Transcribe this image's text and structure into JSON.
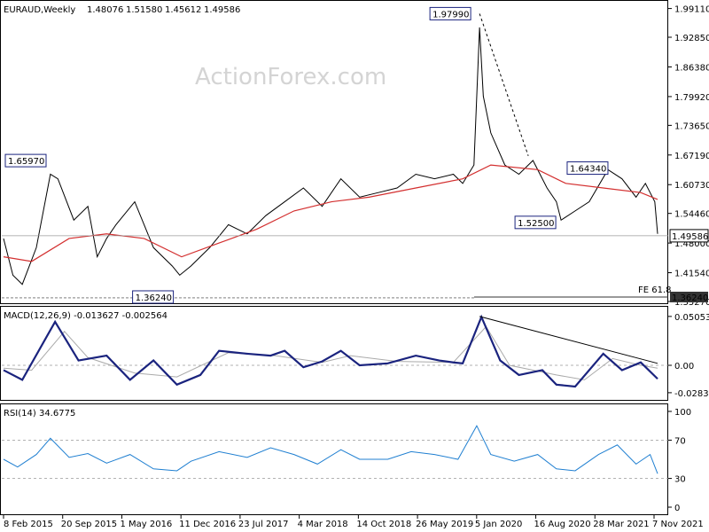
{
  "chart_data": {
    "type": "line",
    "title": "EURAUD,Weekly",
    "ohlc": {
      "open": "1.48076",
      "high": "1.51580",
      "low": "1.45612",
      "close": "1.49586"
    },
    "watermark": "ActionForex.com",
    "x_tick_labels": [
      "8 Feb 2015",
      "20 Sep 2015",
      "1 May 2016",
      "11 Dec 2016",
      "23 Jul 2017",
      "4 Mar 2018",
      "14 Oct 2018",
      "26 May 2019",
      "5 Jan 2020",
      "16 Aug 2020",
      "28 Mar 2021",
      "7 Nov 2021"
    ],
    "colors": {
      "price": "#000000",
      "sma": "#d32f2f",
      "macd": "#1a237e",
      "signal": "#aaaaaa",
      "rsi": "#1f7fd1",
      "grid": "#999999"
    },
    "price_panel": {
      "ylim": [
        1.3527,
        2.0
      ],
      "y_ticks": [
        1.9911,
        1.9285,
        1.8638,
        1.7992,
        1.7365,
        1.6719,
        1.6073,
        1.5446,
        1.48,
        1.4154,
        1.3527
      ],
      "y_tick_labels": [
        "1.99110",
        "1.92850",
        "1.86380",
        "1.79920",
        "1.73650",
        "1.67190",
        "1.60730",
        "1.54460",
        "1.48000",
        "1.41540",
        "1.35270"
      ],
      "current_price": 1.49586,
      "current_price_label": "1.49586",
      "fe_level": 1.3624,
      "fe_level_label": "1.36240",
      "fe_text": "FE 61.8",
      "annotations": [
        {
          "label": "1.65970",
          "value": 1.6597
        },
        {
          "label": "1.36240",
          "value": 1.3624
        },
        {
          "label": "1.97990",
          "value": 1.9799
        },
        {
          "label": "1.52500",
          "value": 1.525
        },
        {
          "label": "1.64340",
          "value": 1.6434
        }
      ],
      "price_path": [
        [
          2015.1,
          1.49
        ],
        [
          2015.2,
          1.41
        ],
        [
          2015.3,
          1.39
        ],
        [
          2015.45,
          1.47
        ],
        [
          2015.6,
          1.63
        ],
        [
          2015.68,
          1.62
        ],
        [
          2015.85,
          1.53
        ],
        [
          2016.0,
          1.56
        ],
        [
          2016.1,
          1.45
        ],
        [
          2016.2,
          1.49
        ],
        [
          2016.3,
          1.52
        ],
        [
          2016.5,
          1.57
        ],
        [
          2016.7,
          1.47
        ],
        [
          2016.9,
          1.43
        ],
        [
          2016.98,
          1.41
        ],
        [
          2017.1,
          1.43
        ],
        [
          2017.3,
          1.47
        ],
        [
          2017.5,
          1.52
        ],
        [
          2017.7,
          1.5
        ],
        [
          2017.9,
          1.54
        ],
        [
          2018.1,
          1.57
        ],
        [
          2018.3,
          1.6
        ],
        [
          2018.5,
          1.56
        ],
        [
          2018.7,
          1.62
        ],
        [
          2018.9,
          1.58
        ],
        [
          2019.1,
          1.59
        ],
        [
          2019.3,
          1.6
        ],
        [
          2019.5,
          1.63
        ],
        [
          2019.7,
          1.62
        ],
        [
          2019.9,
          1.63
        ],
        [
          2020.0,
          1.61
        ],
        [
          2020.12,
          1.65
        ],
        [
          2020.18,
          1.95
        ],
        [
          2020.22,
          1.8
        ],
        [
          2020.3,
          1.72
        ],
        [
          2020.45,
          1.65
        ],
        [
          2020.6,
          1.63
        ],
        [
          2020.75,
          1.66
        ],
        [
          2020.9,
          1.6
        ],
        [
          2021.0,
          1.57
        ],
        [
          2021.05,
          1.53
        ],
        [
          2021.2,
          1.55
        ],
        [
          2021.35,
          1.57
        ],
        [
          2021.55,
          1.64
        ],
        [
          2021.7,
          1.62
        ],
        [
          2021.85,
          1.58
        ],
        [
          2021.95,
          1.61
        ],
        [
          2022.0,
          1.59
        ],
        [
          2022.05,
          1.57
        ],
        [
          2022.08,
          1.5
        ]
      ],
      "sma_path": [
        [
          2015.1,
          1.45
        ],
        [
          2015.4,
          1.44
        ],
        [
          2015.8,
          1.49
        ],
        [
          2016.2,
          1.5
        ],
        [
          2016.6,
          1.49
        ],
        [
          2017.0,
          1.45
        ],
        [
          2017.4,
          1.48
        ],
        [
          2017.8,
          1.51
        ],
        [
          2018.2,
          1.55
        ],
        [
          2018.6,
          1.57
        ],
        [
          2019.0,
          1.58
        ],
        [
          2019.5,
          1.6
        ],
        [
          2020.0,
          1.62
        ],
        [
          2020.3,
          1.65
        ],
        [
          2020.8,
          1.64
        ],
        [
          2021.1,
          1.61
        ],
        [
          2021.5,
          1.6
        ],
        [
          2021.9,
          1.59
        ],
        [
          2022.08,
          1.575
        ]
      ]
    },
    "macd_panel": {
      "label": "MACD(12,26,9) -0.013627 -0.002564",
      "ylim": [
        -0.033,
        0.055
      ],
      "y_ticks": [
        0.05053,
        0.0,
        -0.028323
      ],
      "y_tick_labels": [
        "0.05053",
        "0.00",
        "-0.028323"
      ],
      "macd": [
        [
          2015.1,
          -0.005
        ],
        [
          2015.3,
          -0.015
        ],
        [
          2015.65,
          0.045
        ],
        [
          2015.9,
          0.005
        ],
        [
          2016.2,
          0.01
        ],
        [
          2016.45,
          -0.015
        ],
        [
          2016.7,
          0.005
        ],
        [
          2016.95,
          -0.02
        ],
        [
          2017.2,
          -0.01
        ],
        [
          2017.4,
          0.015
        ],
        [
          2017.7,
          0.012
        ],
        [
          2017.95,
          0.01
        ],
        [
          2018.1,
          0.015
        ],
        [
          2018.3,
          -0.002
        ],
        [
          2018.5,
          0.004
        ],
        [
          2018.7,
          0.015
        ],
        [
          2018.9,
          0.0
        ],
        [
          2019.2,
          0.002
        ],
        [
          2019.5,
          0.01
        ],
        [
          2019.75,
          0.005
        ],
        [
          2019.9,
          0.003
        ],
        [
          2020.0,
          0.002
        ],
        [
          2020.2,
          0.05
        ],
        [
          2020.4,
          0.005
        ],
        [
          2020.6,
          -0.01
        ],
        [
          2020.85,
          -0.005
        ],
        [
          2021.0,
          -0.02
        ],
        [
          2021.2,
          -0.022
        ],
        [
          2021.5,
          0.012
        ],
        [
          2021.7,
          -0.005
        ],
        [
          2021.9,
          0.003
        ],
        [
          2022.08,
          -0.014
        ]
      ],
      "signal": [
        [
          2015.1,
          -0.003
        ],
        [
          2015.4,
          -0.005
        ],
        [
          2015.75,
          0.035
        ],
        [
          2016.0,
          0.008
        ],
        [
          2016.5,
          -0.008
        ],
        [
          2016.95,
          -0.012
        ],
        [
          2017.5,
          0.013
        ],
        [
          2018.0,
          0.01
        ],
        [
          2018.5,
          0.003
        ],
        [
          2018.8,
          0.01
        ],
        [
          2019.3,
          0.004
        ],
        [
          2019.9,
          0.003
        ],
        [
          2020.25,
          0.04
        ],
        [
          2020.5,
          0.0
        ],
        [
          2021.0,
          -0.01
        ],
        [
          2021.3,
          -0.015
        ],
        [
          2021.6,
          0.007
        ],
        [
          2021.9,
          0.0
        ],
        [
          2022.08,
          -0.003
        ]
      ],
      "trendline": [
        [
          2020.18,
          0.05053
        ],
        [
          2022.08,
          0.002
        ]
      ]
    },
    "rsi_panel": {
      "label": "RSI(14) 34.6775",
      "ylim": [
        0,
        100
      ],
      "y_ticks": [
        100,
        70,
        30,
        0
      ],
      "y_tick_labels": [
        "100",
        "70",
        "30",
        "0"
      ],
      "guides": [
        70,
        30
      ],
      "rsi": [
        [
          2015.1,
          50
        ],
        [
          2015.25,
          42
        ],
        [
          2015.45,
          55
        ],
        [
          2015.6,
          72
        ],
        [
          2015.8,
          52
        ],
        [
          2016.0,
          56
        ],
        [
          2016.2,
          46
        ],
        [
          2016.45,
          55
        ],
        [
          2016.7,
          40
        ],
        [
          2016.95,
          38
        ],
        [
          2017.1,
          48
        ],
        [
          2017.4,
          58
        ],
        [
          2017.7,
          52
        ],
        [
          2017.95,
          62
        ],
        [
          2018.2,
          55
        ],
        [
          2018.45,
          45
        ],
        [
          2018.7,
          60
        ],
        [
          2018.9,
          50
        ],
        [
          2019.2,
          50
        ],
        [
          2019.45,
          58
        ],
        [
          2019.7,
          55
        ],
        [
          2019.95,
          50
        ],
        [
          2020.15,
          85
        ],
        [
          2020.3,
          55
        ],
        [
          2020.55,
          48
        ],
        [
          2020.8,
          55
        ],
        [
          2021.0,
          40
        ],
        [
          2021.2,
          38
        ],
        [
          2021.45,
          55
        ],
        [
          2021.65,
          65
        ],
        [
          2021.85,
          45
        ],
        [
          2022.0,
          55
        ],
        [
          2022.08,
          35
        ]
      ]
    }
  }
}
